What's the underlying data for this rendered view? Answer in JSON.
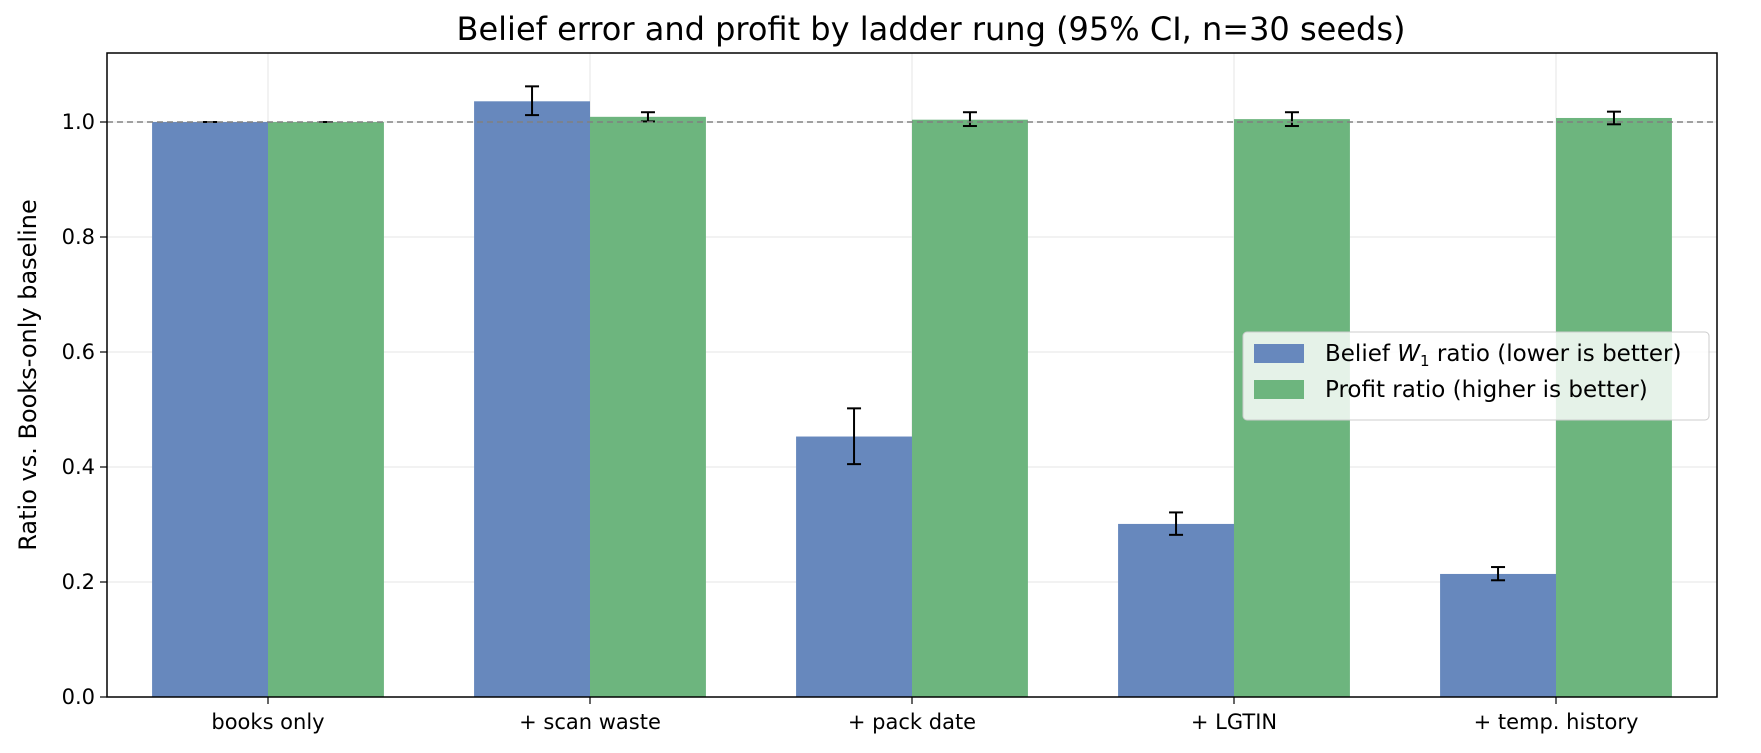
{
  "chart_data": {
    "type": "bar",
    "title": "Belief error and profit by ladder rung (95% CI, n=30 seeds)",
    "xlabel": "",
    "ylabel": "Ratio vs. Books-only baseline",
    "ylim": [
      0,
      1.12
    ],
    "yticks": [
      "0.0",
      "0.2",
      "0.4",
      "0.6",
      "0.8",
      "1.0"
    ],
    "ytick_values": [
      0,
      0.2,
      0.4,
      0.6,
      0.8,
      1.0
    ],
    "grid": true,
    "reference_line": 1.0,
    "categories": [
      "books only",
      "+ scan waste",
      "+ pack date",
      "+ LGTIN",
      "+ temp. history"
    ],
    "legend_position": "center-right",
    "series": [
      {
        "name_parts": [
          "Belief ",
          "W",
          "1",
          " ratio (lower is better)"
        ],
        "color": "#6788bd",
        "values": [
          1.0,
          1.036,
          0.453,
          0.301,
          0.214
        ],
        "err_low": [
          1.0,
          1.012,
          0.405,
          0.282,
          0.203
        ],
        "err_high": [
          1.0,
          1.062,
          0.502,
          0.321,
          0.226
        ]
      },
      {
        "name": "Profit ratio (higher is better)",
        "color": "#6db57e",
        "values": [
          1.0,
          1.009,
          1.004,
          1.005,
          1.007
        ],
        "err_low": [
          1.0,
          1.001,
          0.993,
          0.993,
          0.996
        ],
        "err_high": [
          1.0,
          1.017,
          1.017,
          1.017,
          1.018
        ]
      }
    ]
  }
}
